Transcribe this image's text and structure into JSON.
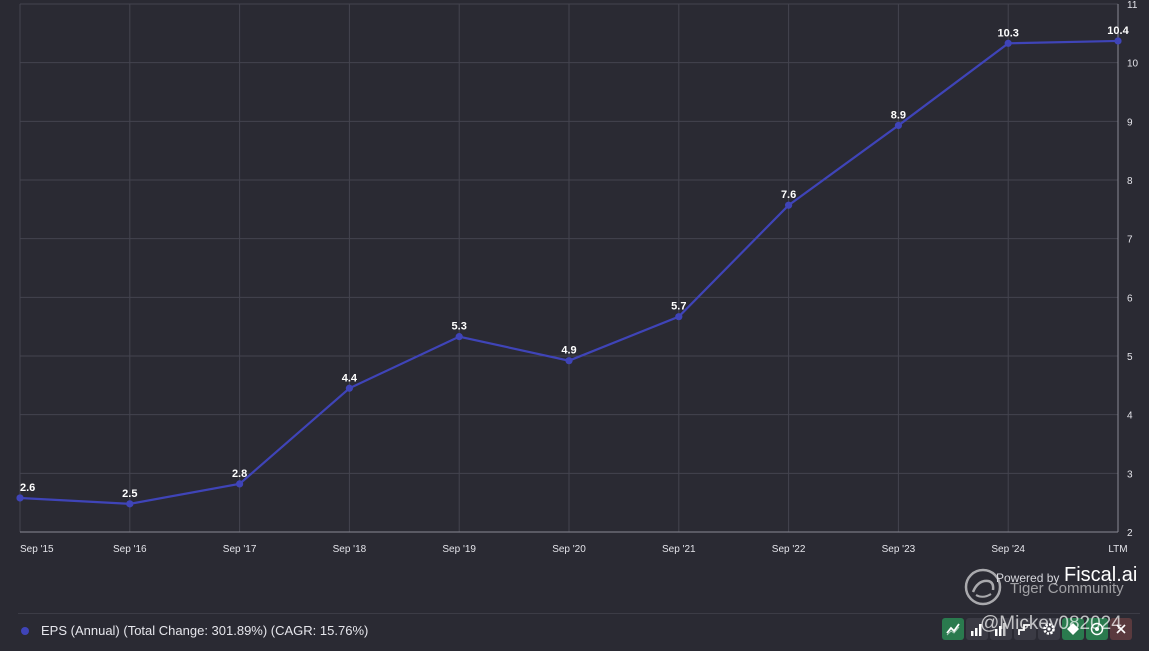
{
  "chart_data": {
    "type": "line",
    "categories": [
      "Sep '15",
      "Sep '16",
      "Sep '17",
      "Sep '18",
      "Sep '19",
      "Sep '20",
      "Sep '21",
      "Sep '22",
      "Sep '23",
      "Sep '24",
      "LTM"
    ],
    "series": [
      {
        "name": "EPS (Annual) (Total Change: 301.89%) (CAGR: 15.76%)",
        "values": [
          2.58,
          2.48,
          2.82,
          4.45,
          5.33,
          4.92,
          5.67,
          7.57,
          8.93,
          10.33,
          10.37
        ],
        "labels": [
          "2.6",
          "2.5",
          "2.8",
          "4.4",
          "5.3",
          "4.9",
          "5.7",
          "7.6",
          "8.9",
          "10.3",
          "10.4"
        ],
        "color": "#3f44b8"
      }
    ],
    "y_ticks": [
      "2",
      "3",
      "4",
      "5",
      "6",
      "7",
      "8",
      "9",
      "10",
      "11"
    ],
    "ylim": [
      2,
      11
    ],
    "y_axis_side": "right",
    "grid": true,
    "legend_position": "bottom-left"
  },
  "toolbar": {
    "buttons": [
      {
        "icon": "line-chart-icon",
        "active": true
      },
      {
        "icon": "bar-chart-icon",
        "active": false
      },
      {
        "icon": "stacked-bar-icon",
        "active": false
      },
      {
        "icon": "step-chart-icon",
        "active": false
      },
      {
        "icon": "gear-icon",
        "active": false
      },
      {
        "icon": "diamond-icon",
        "active": false
      },
      {
        "icon": "target-icon",
        "active": false
      },
      {
        "icon": "close-icon",
        "active": false
      }
    ]
  },
  "branding": {
    "powered_by": "Powered by",
    "name": "Fiscal.ai",
    "community": "Tiger Community",
    "user": "@Mickey082024"
  },
  "colors": {
    "background": "#2a2a33",
    "series": "#3f44b8",
    "grid": "#44444f"
  }
}
